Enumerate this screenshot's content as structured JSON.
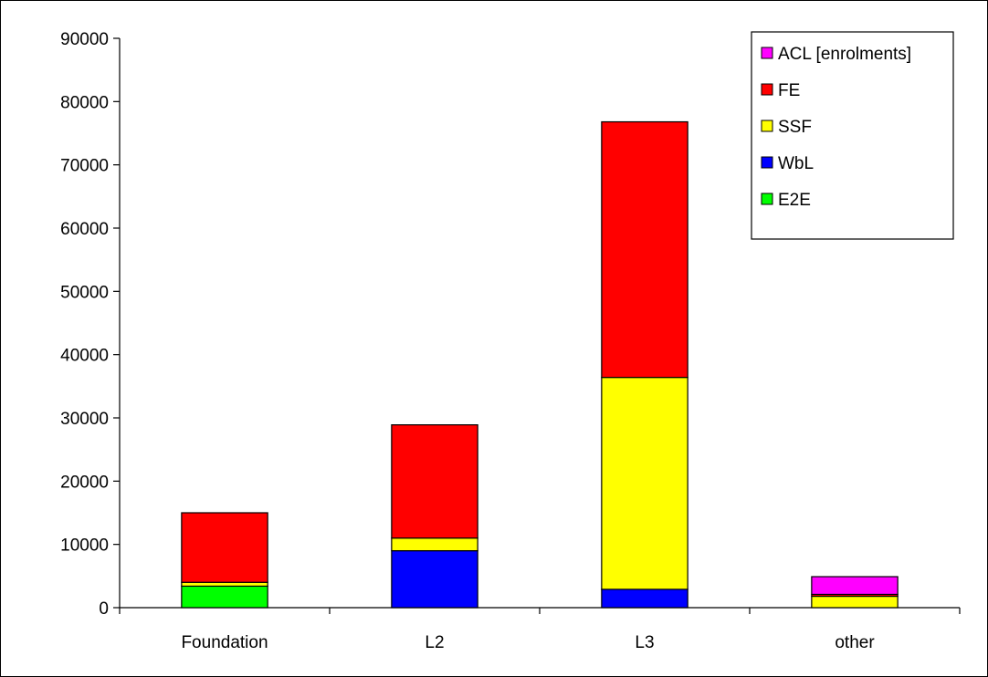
{
  "chart_data": {
    "type": "bar",
    "stacked": true,
    "title": "",
    "xlabel": "",
    "ylabel": "",
    "categories": [
      "Foundation",
      "L2",
      "L3",
      "other"
    ],
    "ylim": [
      0,
      90000
    ],
    "yticks": [
      0,
      10000,
      20000,
      30000,
      40000,
      50000,
      60000,
      70000,
      80000,
      90000
    ],
    "grid": false,
    "legend_position": "top-right",
    "series": [
      {
        "name": "E2E",
        "color": "#00ff00",
        "values": [
          3400,
          0,
          0,
          0
        ]
      },
      {
        "name": "WbL",
        "color": "#0000ff",
        "values": [
          0,
          9000,
          2900,
          0
        ]
      },
      {
        "name": "SSF",
        "color": "#ffff00",
        "values": [
          600,
          2000,
          33500,
          1800
        ]
      },
      {
        "name": "FE",
        "color": "#ff0000",
        "values": [
          11000,
          17900,
          40400,
          300
        ]
      },
      {
        "name": "ACL [enrolments]",
        "color": "#ff00ff",
        "values": [
          0,
          0,
          0,
          2800
        ]
      }
    ],
    "legend_order": [
      "ACL [enrolments]",
      "FE",
      "SSF",
      "WbL",
      "E2E"
    ]
  }
}
